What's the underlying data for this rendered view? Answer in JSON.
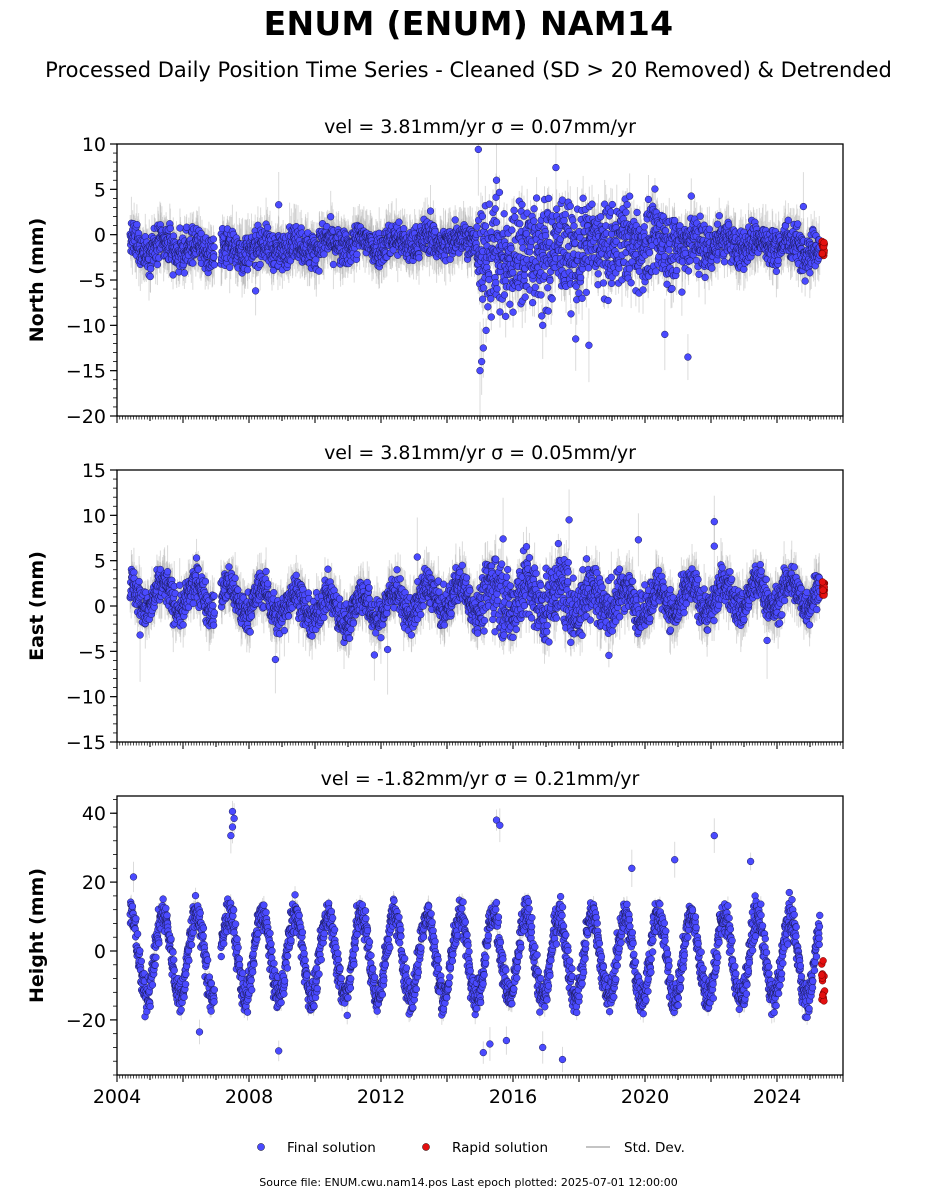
{
  "header": {
    "title": "ENUM (ENUM) NAM14",
    "subtitle": "Processed Daily Position Time Series - Cleaned (SD > 20 Removed) & Detrended"
  },
  "footer": {
    "text": "Source file: ENUM.cwu.nam14.pos  Last epoch plotted: 2025-07-01 12:00:00"
  },
  "colors": {
    "final": "#4a4aff",
    "rapid": "#e31010",
    "stddev": "#b0b0b0"
  },
  "chart_data": [
    {
      "type": "scatter",
      "title": "vel = 3.81mm/yr   σ = 0.07mm/yr",
      "ylabel": "North (mm)",
      "xlim": [
        2004.0,
        2026.0
      ],
      "ylim": [
        -20,
        10
      ],
      "yticks": [
        10,
        5,
        0,
        -5,
        -10,
        -15,
        -20
      ],
      "ytick_labels": [
        "10",
        "5",
        "0",
        "−5",
        "−10",
        "−15",
        "−20"
      ],
      "x_labels_shown": false,
      "profile": {
        "mean": [
          [
            2004.4,
            -1.2
          ],
          [
            2007.0,
            -1.8
          ],
          [
            2010.0,
            -1.2
          ],
          [
            2013.0,
            -0.8
          ],
          [
            2014.9,
            -0.5
          ],
          [
            2015.1,
            -3.0
          ],
          [
            2016.5,
            -2.0
          ],
          [
            2020.0,
            -1.0
          ],
          [
            2024.0,
            -1.0
          ],
          [
            2025.3,
            -1.5
          ]
        ],
        "spread": [
          [
            2004.4,
            1.4
          ],
          [
            2014.9,
            1.3
          ],
          [
            2015.0,
            4.0
          ],
          [
            2016.0,
            4.5
          ],
          [
            2018.0,
            3.5
          ],
          [
            2021.0,
            2.8
          ],
          [
            2022.5,
            1.5
          ],
          [
            2025.3,
            1.5
          ]
        ],
        "seasonal": 0.6
      },
      "outliers": [
        [
          2014.95,
          9.4
        ],
        [
          2017.3,
          7.4
        ],
        [
          2008.9,
          3.3
        ],
        [
          2015.5,
          6.0
        ],
        [
          2015.0,
          -15.0
        ],
        [
          2015.05,
          -14.0
        ],
        [
          2015.1,
          -12.5
        ],
        [
          2018.3,
          -12.2
        ],
        [
          2021.3,
          -13.5
        ],
        [
          2008.2,
          -6.2
        ],
        [
          2016.9,
          -10.0
        ],
        [
          2020.6,
          -11.0
        ],
        [
          2013.5,
          2.6
        ],
        [
          2024.8,
          3.1
        ],
        [
          2017.9,
          -11.5
        ]
      ],
      "rapid": {
        "x": 2025.4,
        "y_min": -2.6,
        "y_max": -0.4
      },
      "series": [
        {
          "name": "Final solution",
          "color": "#4a4aff",
          "from": 2004.4,
          "to": 2025.3
        },
        {
          "name": "Rapid solution",
          "color": "#e31010",
          "from": 2025.35,
          "to": 2025.5
        }
      ]
    },
    {
      "type": "scatter",
      "title": "vel = 3.81mm/yr   σ = 0.05mm/yr",
      "ylabel": "East (mm)",
      "xlim": [
        2004.0,
        2026.0
      ],
      "ylim": [
        -15,
        15
      ],
      "yticks": [
        15,
        10,
        5,
        0,
        -5,
        -10,
        -15
      ],
      "ytick_labels": [
        "15",
        "10",
        "5",
        "0",
        "−5",
        "−10",
        "−15"
      ],
      "x_labels_shown": false,
      "profile": {
        "mean": [
          [
            2004.4,
            1.0
          ],
          [
            2007.0,
            1.0
          ],
          [
            2011.0,
            -0.5
          ],
          [
            2014.0,
            1.0
          ],
          [
            2016.0,
            1.0
          ],
          [
            2020.0,
            0.5
          ],
          [
            2025.3,
            1.5
          ]
        ],
        "spread": [
          [
            2004.4,
            1.4
          ],
          [
            2014.9,
            1.4
          ],
          [
            2015.3,
            2.8
          ],
          [
            2018.8,
            2.5
          ],
          [
            2019.5,
            1.5
          ],
          [
            2025.3,
            1.4
          ]
        ],
        "seasonal": 1.5
      },
      "outliers": [
        [
          2017.7,
          9.5
        ],
        [
          2022.1,
          9.3
        ],
        [
          2019.8,
          7.3
        ],
        [
          2022.1,
          6.6
        ],
        [
          2008.8,
          -5.9
        ],
        [
          2011.8,
          -5.4
        ],
        [
          2012.2,
          -4.8
        ],
        [
          2023.7,
          -3.8
        ],
        [
          2004.7,
          -3.2
        ],
        [
          2015.7,
          7.4
        ],
        [
          2013.1,
          5.4
        ]
      ],
      "rapid": {
        "x": 2025.4,
        "y_min": 1.2,
        "y_max": 2.7
      },
      "series": [
        {
          "name": "Final solution",
          "color": "#4a4aff",
          "from": 2004.4,
          "to": 2025.3
        },
        {
          "name": "Rapid solution",
          "color": "#e31010",
          "from": 2025.35,
          "to": 2025.5
        }
      ]
    },
    {
      "type": "scatter",
      "title": "vel = -1.82mm/yr   σ = 0.21mm/yr",
      "ylabel": "Height (mm)",
      "xlim": [
        2004.0,
        2026.0
      ],
      "ylim": [
        -36,
        45
      ],
      "yticks": [
        40,
        20,
        0,
        -20
      ],
      "ytick_labels": [
        "40",
        "20",
        "0",
        "−20"
      ],
      "x_labels_shown": true,
      "xticks": [
        2004,
        2008,
        2012,
        2016,
        2020,
        2024
      ],
      "xtick_labels": [
        "2004",
        "2008",
        "2012",
        "2016",
        "2020",
        "2024"
      ],
      "profile": {
        "mean": [
          [
            2004.4,
            -1.0
          ],
          [
            2025.3,
            -2.0
          ]
        ],
        "spread": [
          [
            2004.4,
            3.5
          ],
          [
            2025.3,
            3.5
          ]
        ],
        "seasonal": 12
      },
      "outliers": [
        [
          2007.5,
          40.5
        ],
        [
          2007.55,
          38.5
        ],
        [
          2007.5,
          36.0
        ],
        [
          2007.45,
          33.5
        ],
        [
          2015.5,
          38.0
        ],
        [
          2015.6,
          36.5
        ],
        [
          2022.1,
          33.5
        ],
        [
          2004.5,
          21.5
        ],
        [
          2008.9,
          -29.0
        ],
        [
          2017.5,
          -31.5
        ],
        [
          2015.1,
          -29.5
        ],
        [
          2015.3,
          -27.0
        ],
        [
          2006.5,
          -23.5
        ],
        [
          2019.6,
          24.0
        ],
        [
          2020.9,
          26.5
        ],
        [
          2023.2,
          26.0
        ],
        [
          2016.9,
          -28.0
        ],
        [
          2015.8,
          -26.0
        ]
      ],
      "rapid": {
        "x": 2025.4,
        "y_min": -15.5,
        "y_max": -2.5
      },
      "series": [
        {
          "name": "Final solution",
          "color": "#4a4aff",
          "from": 2004.4,
          "to": 2025.3
        },
        {
          "name": "Rapid solution",
          "color": "#e31010",
          "from": 2025.35,
          "to": 2025.5
        }
      ]
    }
  ],
  "legend": {
    "placement": "bottom-center",
    "items": [
      {
        "label": "Final solution",
        "marker": "dot",
        "color": "#4a4aff"
      },
      {
        "label": "Rapid solution",
        "marker": "dot",
        "color": "#e31010"
      },
      {
        "label": "Std. Dev.",
        "marker": "line",
        "color": "#b0b0b0"
      }
    ]
  }
}
